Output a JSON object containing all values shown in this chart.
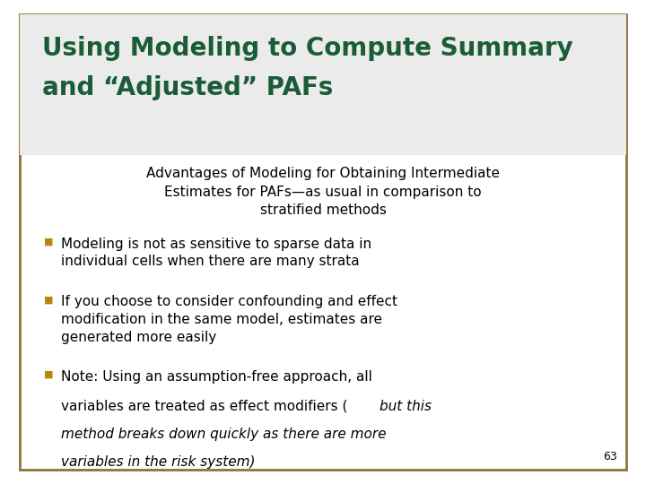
{
  "title_line1": "Using Modeling to Compute Summary",
  "title_line2": "and “Adjusted” PAFs",
  "title_color": "#1a5c38",
  "subtitle_line1": "Advantages of Modeling for Obtaining Intermediate",
  "subtitle_line2": "Estimates for PAFs—as usual in comparison to",
  "subtitle_line3": "stratified methods",
  "subtitle_color": "#000000",
  "bullet_color": "#b8860b",
  "background_color": "#ffffff",
  "title_bg_color": "#ebebeb",
  "border_color": "#8B7536",
  "page_number": "63",
  "body_text_color": "#000000",
  "figsize": [
    7.2,
    5.4
  ],
  "dpi": 100
}
